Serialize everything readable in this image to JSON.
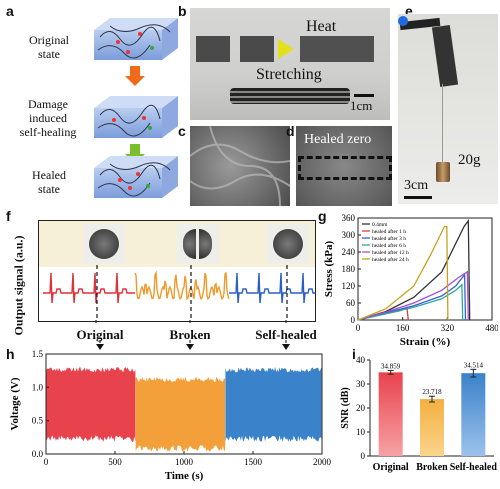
{
  "panel_labels": {
    "a": "a",
    "b": "b",
    "c": "c",
    "d": "d",
    "e": "e",
    "f": "f",
    "g": "g",
    "h": "h",
    "i": "i"
  },
  "panel_a": {
    "states": [
      "Original\nstate",
      "Damage\ninduced\nself-healing",
      "Healed\nstate"
    ]
  },
  "panel_b": {
    "heat_label": "Heat",
    "stretching_label": "Stretching",
    "scale_label": "1cm"
  },
  "panel_d": {
    "label": "Healed zero"
  },
  "panel_e": {
    "scale_label": "3cm",
    "weight_label": "20g"
  },
  "panel_f": {
    "ylabel": "Output signal (a.u.)",
    "states": [
      "Original",
      "Broken",
      "Self-healed"
    ],
    "colors": [
      "#e0303a",
      "#f09a2a",
      "#2a5fc8"
    ]
  },
  "chart_data": [
    {
      "type": "line",
      "panel": "g",
      "xlabel": "Strain (%)",
      "ylabel": "Stress (kPa)",
      "xlim": [
        0,
        480
      ],
      "ylim": [
        0,
        360
      ],
      "xticks": [
        0,
        160,
        320,
        480
      ],
      "yticks": [
        0,
        60,
        120,
        180,
        240,
        300,
        360
      ],
      "legend_position": "top-left",
      "series": [
        {
          "name": "0.4mm",
          "color": "#333333",
          "x": [
            0,
            100,
            200,
            300,
            380,
            395,
            400
          ],
          "y": [
            0,
            30,
            80,
            170,
            330,
            350,
            0
          ]
        },
        {
          "name": "healed after 1 h",
          "color": "#e23a3a",
          "x": [
            0,
            50,
            100,
            150,
            175,
            180
          ],
          "y": [
            0,
            12,
            22,
            33,
            45,
            0
          ]
        },
        {
          "name": "healed after 3 h",
          "color": "#3a5fcf",
          "x": [
            0,
            100,
            200,
            300,
            350,
            382,
            385
          ],
          "y": [
            0,
            25,
            50,
            85,
            120,
            160,
            0
          ]
        },
        {
          "name": "healed after 6 h",
          "color": "#2aaa9a",
          "x": [
            0,
            100,
            200,
            300,
            350,
            372,
            375
          ],
          "y": [
            0,
            22,
            45,
            75,
            105,
            125,
            0
          ]
        },
        {
          "name": "healed after 12 h",
          "color": "#a050d8",
          "x": [
            0,
            100,
            200,
            300,
            360,
            392,
            395
          ],
          "y": [
            0,
            28,
            60,
            105,
            150,
            170,
            0
          ]
        },
        {
          "name": "healed after 24 h",
          "color": "#c9a21a",
          "x": [
            0,
            100,
            200,
            260,
            310,
            318,
            322
          ],
          "y": [
            0,
            40,
            120,
            230,
            330,
            330,
            0
          ]
        }
      ]
    },
    {
      "type": "area",
      "panel": "h",
      "xlabel": "Time (s)",
      "ylabel": "Voltage (V)",
      "xlim": [
        0,
        2000
      ],
      "ylim": [
        0.0,
        1.5
      ],
      "xticks": [
        0,
        500,
        1000,
        1500,
        2000
      ],
      "yticks": [
        0.0,
        0.5,
        1.0,
        1.5
      ],
      "segments": [
        {
          "x": [
            0,
            650
          ],
          "band": [
            0.25,
            1.25
          ],
          "color": "#e8424c"
        },
        {
          "x": [
            650,
            1300
          ],
          "band": [
            0.1,
            1.1
          ],
          "color": "#f3a03a"
        },
        {
          "x": [
            1300,
            2000
          ],
          "band": [
            0.25,
            1.25
          ],
          "color": "#3a82c9"
        }
      ]
    },
    {
      "type": "bar",
      "panel": "i",
      "ylabel": "SNR (dB)",
      "ylim": [
        0,
        40
      ],
      "yticks": [
        0,
        10,
        20,
        30,
        40
      ],
      "categories": [
        "Original",
        "Broken",
        "Self-healed"
      ],
      "values": [
        34.859,
        23.718,
        34.514
      ],
      "value_labels": [
        "34.859",
        "23.718",
        "34.514"
      ],
      "errors": [
        0.8,
        1.2,
        1.6
      ],
      "colors": [
        "#e8424c",
        "#f3b040",
        "#3a82c9"
      ]
    }
  ]
}
